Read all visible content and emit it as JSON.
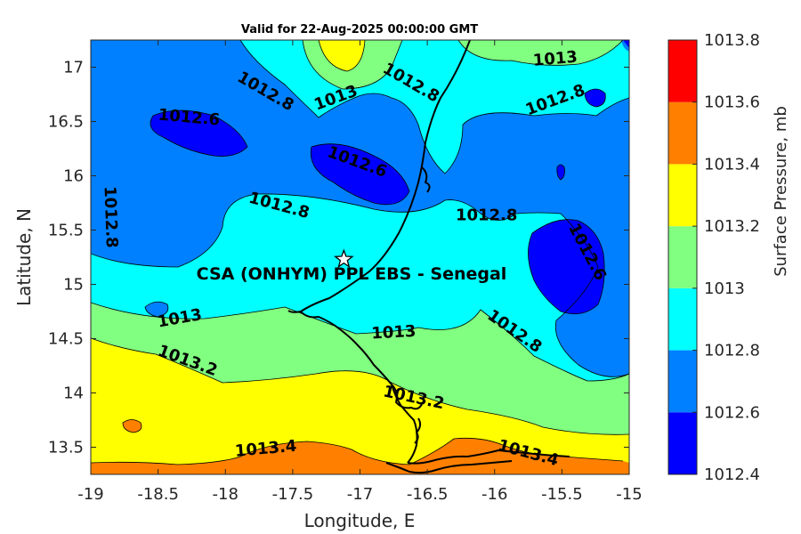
{
  "title": "Valid for 22-Aug-2025 00:00:00 GMT",
  "site_label": "CSA (ONHYM) PPL EBS  - Senegal",
  "site_marker": "star-icon",
  "chart_data": {
    "type": "contour-map",
    "xlabel": "Longitude, E",
    "ylabel": "Latitude, N",
    "xlim": [
      -19,
      -15
    ],
    "ylim": [
      13.25,
      17.25
    ],
    "xticks": [
      "-19",
      "-18.5",
      "-18",
      "-17.5",
      "-17",
      "-16.5",
      "-16",
      "-15.5",
      "-15"
    ],
    "yticks": [
      "13.5",
      "14",
      "14.5",
      "15",
      "15.5",
      "16",
      "16.5",
      "17"
    ],
    "site": {
      "lon": -17.12,
      "lat": 15.23
    },
    "colorbar": {
      "label": "Surface Pressure, mb",
      "levels": [
        1012.4,
        1012.6,
        1012.8,
        1013,
        1013.2,
        1013.4,
        1013.6,
        1013.8
      ],
      "level_labels": [
        "1012.4",
        "1012.6",
        "1012.8",
        "1013",
        "1013.2",
        "1013.4",
        "1013.6",
        "1013.8"
      ],
      "colors": [
        "#0000ff",
        "#0080ff",
        "#00ffff",
        "#80ff80",
        "#ffff00",
        "#ff8000",
        "#ff0000",
        "#800000"
      ]
    },
    "contour_labels": [
      {
        "text": "1012.6",
        "lon": -18.27,
        "lat": 16.54,
        "angle": 5
      },
      {
        "text": "1012.8",
        "lon": -17.7,
        "lat": 16.78,
        "angle": 30
      },
      {
        "text": "1013",
        "lon": -17.18,
        "lat": 16.72,
        "angle": -20
      },
      {
        "text": "1012.8",
        "lon": -16.62,
        "lat": 16.86,
        "angle": 30
      },
      {
        "text": "1013",
        "lon": -15.55,
        "lat": 17.08,
        "angle": -5
      },
      {
        "text": "1012.8",
        "lon": -15.55,
        "lat": 16.7,
        "angle": -20
      },
      {
        "text": "1012.6",
        "lon": -17.02,
        "lat": 16.13,
        "angle": 20
      },
      {
        "text": "1012.8",
        "lon": -17.6,
        "lat": 15.73,
        "angle": 15
      },
      {
        "text": "1012.8",
        "lon": -18.85,
        "lat": 15.62,
        "angle": 88
      },
      {
        "text": "1012.8",
        "lon": -16.06,
        "lat": 15.64,
        "angle": 0
      },
      {
        "text": "1012.6",
        "lon": -15.31,
        "lat": 15.3,
        "angle": 62
      },
      {
        "text": "1013",
        "lon": -18.34,
        "lat": 14.69,
        "angle": -10
      },
      {
        "text": "1013",
        "lon": -16.75,
        "lat": 14.56,
        "angle": -3
      },
      {
        "text": "1012.8",
        "lon": -15.85,
        "lat": 14.57,
        "angle": 35
      },
      {
        "text": "1013.2",
        "lon": -18.28,
        "lat": 14.3,
        "angle": 20
      },
      {
        "text": "1013.2",
        "lon": -16.6,
        "lat": 13.96,
        "angle": 12
      },
      {
        "text": "1013.4",
        "lon": -17.7,
        "lat": 13.49,
        "angle": -5
      },
      {
        "text": "1013.4",
        "lon": -15.75,
        "lat": 13.45,
        "angle": 15
      }
    ]
  }
}
